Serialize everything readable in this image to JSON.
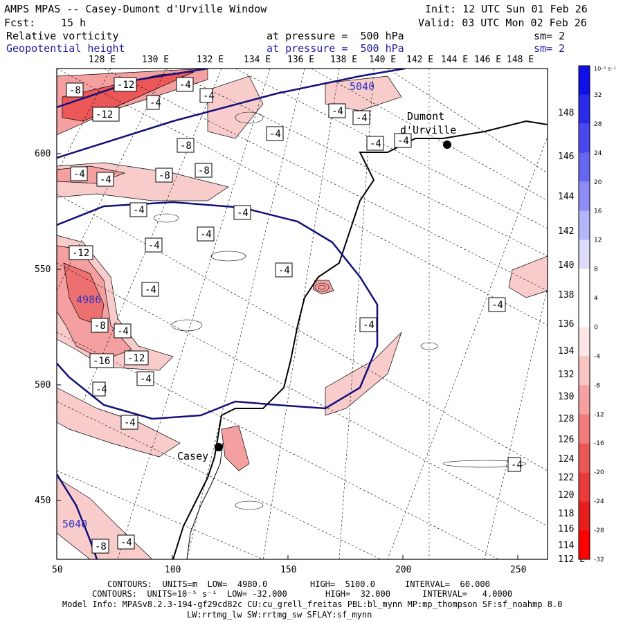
{
  "header": {
    "title": "AMPS MPAS -- Casey-Dumont d'Urville Window",
    "init": "Init: 12 UTC Sun 01 Feb 26",
    "fcst_label": "Fcst:",
    "fcst_value": "15 h",
    "valid": "Valid: 03 UTC Mon 02 Feb 26",
    "field1": "Relative vorticity",
    "field1_level": "at pressure =  500 hPa",
    "field1_sm": "sm= 2",
    "field2": "Geopotential height",
    "field2_level": "at pressure =  500 hPa",
    "field2_sm": "sm= 2"
  },
  "map": {
    "top_lon_labels": [
      "128 E",
      "130 E",
      "132 E",
      "134 E",
      "136 E",
      "138 E",
      "140 E",
      "142 E",
      "144 E",
      "146 E",
      "148 E"
    ],
    "right_lon_labels": [
      "148 E",
      "146 E",
      "144 E",
      "142 E",
      "140 E",
      "138 E",
      "136 E",
      "134 E",
      "132 E",
      "130 E",
      "128 E",
      "126 E",
      "124 E",
      "122 E",
      "120 E",
      "118 E",
      "116 E",
      "114 E",
      "112 E"
    ],
    "y_ticks": [
      "600",
      "550",
      "500",
      "450"
    ],
    "x_ticks": [
      "50",
      "100",
      "150",
      "200",
      "250"
    ],
    "places": [
      {
        "name": "Dumont",
        "sub": "d'Urville"
      },
      {
        "name": "Casey",
        "sub": ""
      }
    ],
    "height_labels": [
      "5040",
      "4986",
      "5040"
    ],
    "vort_labels": [
      "-8",
      "-12",
      "-4",
      "-4",
      "-4",
      "-12",
      "-4",
      "-4",
      "-4",
      "-4",
      "-4",
      "-8",
      "-8",
      "-8",
      "-4",
      "-4",
      "-4",
      "-4",
      "-4",
      "-12",
      "-4",
      "-4",
      "-4",
      "-8",
      "-4",
      "-16",
      "-12",
      "-4",
      "-4",
      "-4",
      "-4",
      "-4",
      "-8",
      "-4",
      "-4"
    ]
  },
  "colorbar": {
    "unit": "10⁻⁵ s⁻¹",
    "labels": [
      "32",
      "28",
      "24",
      "20",
      "16",
      "12",
      "8",
      "4",
      "0",
      "-4",
      "-8",
      "-12",
      "-16",
      "-20",
      "-24",
      "-28",
      "-32"
    ],
    "colors": [
      "#1010e8",
      "#2a2aea",
      "#4848ee",
      "#6666f0",
      "#8c8cf4",
      "#b4b4f8",
      "#dcdcfa",
      "#ffffff",
      "#ffffff",
      "#fde6e6",
      "#f9c4c4",
      "#f4a0a0",
      "#f07c7c",
      "#ec5858",
      "#ea3a3a",
      "#e81e1e",
      "#ff0000"
    ]
  },
  "footer": {
    "line1_a": "CONTOURS:  UNITS=m  LOW=  4980.0",
    "line1_b": "HIGH=  5100.0",
    "line1_c": "INTERVAL=  60.000",
    "line2_a": "CONTOURS:  UNITS=10⁻⁵ s⁻¹  LOW= -32.000",
    "line2_b": "HIGH=  32.000",
    "line2_c": "INTERVAL=   4.0000",
    "line3": "Model Info: MPASv8.2.3-194-gf29cd82c CU:cu_grell_freitas PBL:bl_mynn MP:mp_thompson SF:sf_noahmp 8.0",
    "line4": "LW:rrtmg_lw SW:rrtmg_sw SFLAY:sf_mynn"
  }
}
